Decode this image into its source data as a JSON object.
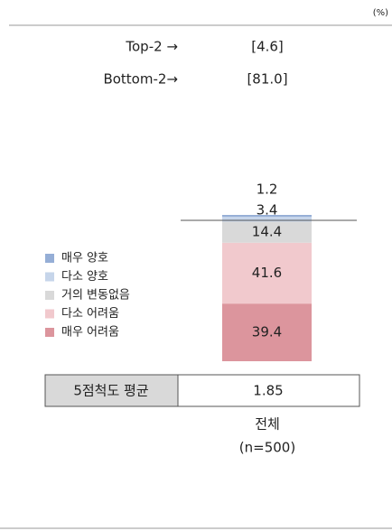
{
  "chart_data": {
    "type": "stacked_bar",
    "unit": "(%)",
    "categories": [
      "전체"
    ],
    "category_note": "(n=500)",
    "series": [
      {
        "name": "매우 양호",
        "color": "#95aed6",
        "values": [
          1.2
        ]
      },
      {
        "name": "다소 양호",
        "color": "#c6d5ea",
        "values": [
          3.4
        ]
      },
      {
        "name": "거의 변동없음",
        "color": "#d9d9d9",
        "values": [
          14.4
        ]
      },
      {
        "name": "다소 어려움",
        "color": "#f1c9cd",
        "values": [
          41.6
        ]
      },
      {
        "name": "매우 어려움",
        "color": "#dc959d",
        "values": [
          39.4
        ]
      }
    ],
    "ylim": [
      0,
      100
    ],
    "annotations": [
      {
        "label": "Top-2 →",
        "value": "[4.6]"
      },
      {
        "label": "Bottom-2→",
        "value": "[81.0]"
      }
    ],
    "mean": {
      "label": "5점척도 평균",
      "value": 1.85
    }
  }
}
